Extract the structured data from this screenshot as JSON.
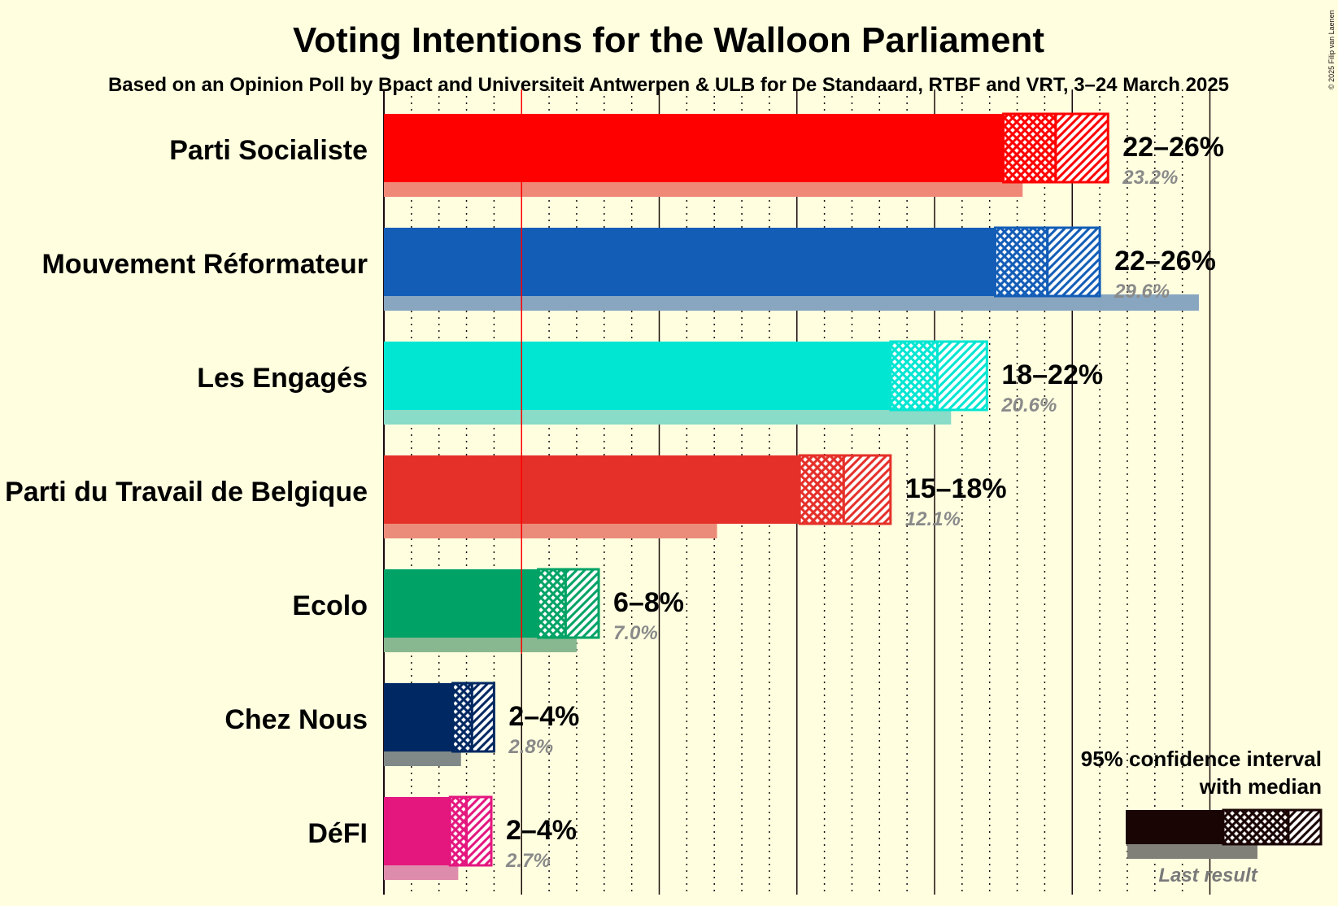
{
  "chart_data": {
    "type": "bar",
    "title": "Voting Intentions for the Walloon Parliament",
    "subtitle": "Based on an Opinion Poll by Bpact and Universiteit Antwerpen & ULB for De Standaard, RTBF and VRT, 3–24 March 2025",
    "copyright": "© 2025 Filip van Laenen",
    "xlim": [
      0,
      30
    ],
    "threshold": 5,
    "parties": [
      {
        "name": "Parti Socialiste",
        "color": "#ff0000",
        "last_color": "#f08878",
        "low": 22.5,
        "median": 24.4,
        "high": 26.3,
        "range_label": "22–26%",
        "last": 23.2,
        "last_label": "23.2%"
      },
      {
        "name": "Mouvement Réformateur",
        "color": "#135db7",
        "last_color": "#88a6c0",
        "low": 22.2,
        "median": 24.1,
        "high": 26.0,
        "range_label": "22–26%",
        "last": 29.6,
        "last_label": "29.6%"
      },
      {
        "name": "Les Engagés",
        "color": "#00e6d2",
        "last_color": "#88dcc8",
        "low": 18.4,
        "median": 20.1,
        "high": 21.9,
        "range_label": "18–22%",
        "last": 20.6,
        "last_label": "20.6%"
      },
      {
        "name": "Parti du Travail de Belgique",
        "color": "#e53029",
        "last_color": "#eb8c7a",
        "low": 15.1,
        "median": 16.7,
        "high": 18.4,
        "range_label": "15–18%",
        "last": 12.1,
        "last_label": "12.1%"
      },
      {
        "name": "Ecolo",
        "color": "#00a365",
        "last_color": "#88b890",
        "low": 5.6,
        "median": 6.6,
        "high": 7.8,
        "range_label": "6–8%",
        "last": 7.0,
        "last_label": "7.0%"
      },
      {
        "name": "Chez Nous",
        "color": "#002862",
        "last_color": "#808888",
        "low": 2.5,
        "median": 3.2,
        "high": 4.0,
        "range_label": "2–4%",
        "last": 2.8,
        "last_label": "2.8%"
      },
      {
        "name": "DéFI",
        "color": "#e4177f",
        "last_color": "#de8cac",
        "low": 2.4,
        "median": 3.0,
        "high": 3.9,
        "range_label": "2–4%",
        "last": 2.7,
        "last_label": "2.7%"
      }
    ],
    "legend": {
      "line1": "95% confidence interval",
      "line2": "with median",
      "last_result": "Last result"
    }
  }
}
